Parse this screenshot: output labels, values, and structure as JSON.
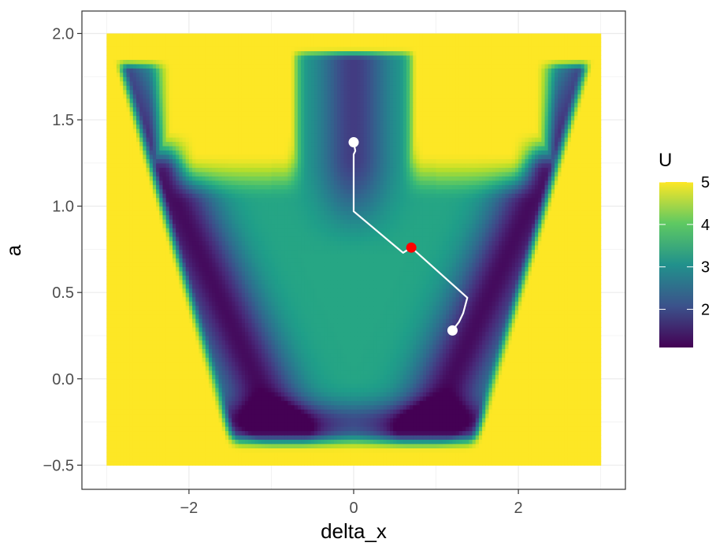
{
  "chart_data": {
    "type": "heatmap",
    "title": "",
    "xlabel": "delta_x",
    "ylabel": "a",
    "xlim": [
      -3.3,
      3.3
    ],
    "ylim": [
      -0.64,
      2.13
    ],
    "x_ticks": [
      -2,
      0,
      2
    ],
    "x_tick_labels": [
      "−2",
      "0",
      "2"
    ],
    "y_ticks": [
      -0.5,
      0.0,
      0.5,
      1.0,
      1.5,
      2.0
    ],
    "y_tick_labels": [
      "−0.5",
      "0.0",
      "0.5",
      "1.0",
      "1.5",
      "2.0"
    ],
    "grid": true,
    "heatmap": {
      "x_range": [
        -3,
        3
      ],
      "y_range": [
        -0.5,
        2.0
      ],
      "value_range": [
        1.1,
        5.0
      ],
      "colormap": "viridis"
    },
    "legend": {
      "title": "U",
      "ticks": [
        2,
        3,
        4,
        5
      ],
      "tick_labels": [
        "2",
        "3",
        "4",
        "5"
      ],
      "position": "right"
    },
    "path": {
      "color": "#ffffff",
      "points": [
        [
          0.0,
          1.37
        ],
        [
          0.02,
          1.32
        ],
        [
          0.0,
          1.3
        ],
        [
          0.0,
          0.97
        ],
        [
          0.6,
          0.73
        ],
        [
          0.7,
          0.76
        ],
        [
          1.38,
          0.47
        ],
        [
          1.33,
          0.38
        ],
        [
          1.28,
          0.33
        ],
        [
          1.2,
          0.28
        ]
      ]
    },
    "markers": [
      {
        "x": 0.0,
        "y": 1.37,
        "color": "#ffffff"
      },
      {
        "x": 1.2,
        "y": 0.28,
        "color": "#ffffff"
      },
      {
        "x": 0.7,
        "y": 0.76,
        "color": "#ff0000"
      }
    ]
  }
}
